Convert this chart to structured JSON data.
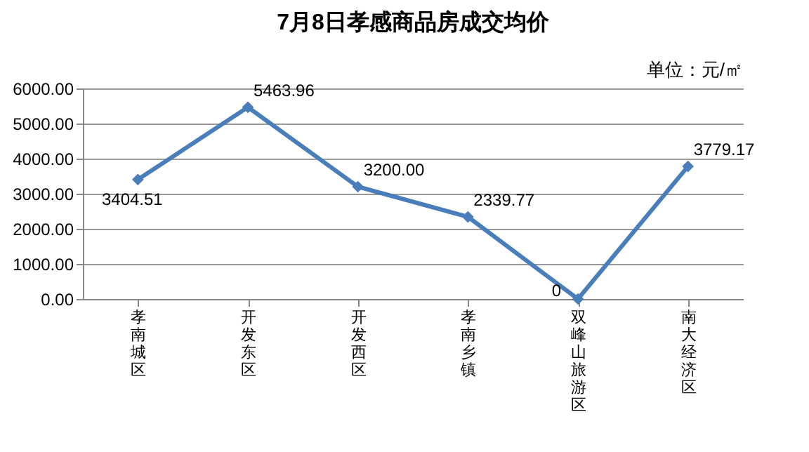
{
  "chart_data": {
    "type": "line",
    "title": "7月8日孝感商品房成交均价",
    "annotations": [
      "单位：元/㎡"
    ],
    "categories": [
      "孝南城区",
      "开发东区",
      "开发西区",
      "孝南乡镇",
      "双峰山旅游区",
      "南大经济区"
    ],
    "series": [
      {
        "color": "#4a7ebb",
        "values": [
          3404.51,
          5463.96,
          3200.0,
          2339.77,
          0,
          3779.17
        ],
        "value_labels": [
          "3404.51",
          "5463.96",
          "3200.00",
          "2339.77",
          "0",
          "3779.17"
        ]
      }
    ],
    "ylim": [
      0,
      6000
    ],
    "yticks": [
      {
        "value": 0,
        "label": "0.00"
      },
      {
        "value": 1000,
        "label": "1000.00"
      },
      {
        "value": 2000,
        "label": "2000.00"
      },
      {
        "value": 3000,
        "label": "3000.00"
      },
      {
        "value": 4000,
        "label": "4000.00"
      },
      {
        "value": 5000,
        "label": "5000.00"
      },
      {
        "value": 6000,
        "label": "6000.00"
      }
    ],
    "grid": "y",
    "marker": "diamond",
    "line_style": "solid",
    "legend": false
  }
}
